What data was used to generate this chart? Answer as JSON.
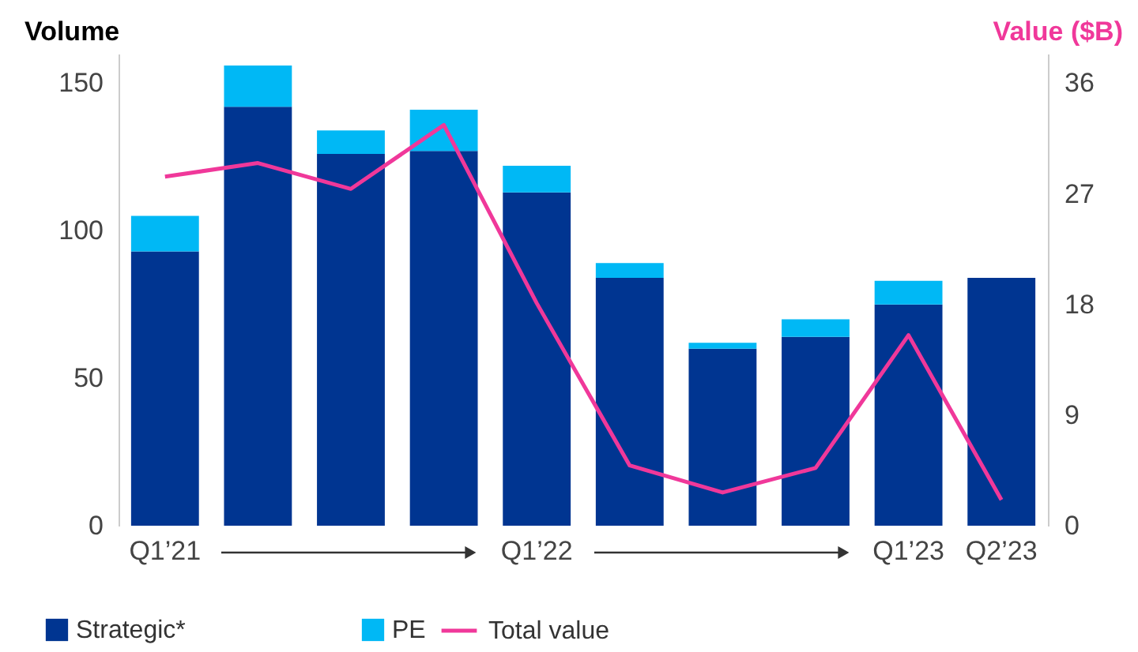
{
  "chart_data": {
    "type": "bar",
    "stacked": true,
    "ylabel": "Volume",
    "y2label": "Value ($B)",
    "categories": [
      "Q1’21",
      null,
      null,
      null,
      "Q1’22",
      null,
      null,
      null,
      "Q1’23",
      "Q2’23"
    ],
    "series": [
      {
        "name": "Strategic*",
        "color": "#003591",
        "values": [
          93,
          142,
          126,
          127,
          113,
          84,
          60,
          64,
          75,
          84
        ]
      },
      {
        "name": "PE",
        "color": "#00b8f5",
        "values": [
          12,
          14,
          8,
          14,
          9,
          5,
          2,
          6,
          8,
          0
        ]
      },
      {
        "name": "Total value",
        "type": "line",
        "axis": "y2",
        "color": "#f0389a",
        "values": [
          28.4,
          29.5,
          27.4,
          32.6,
          18.1,
          4.9,
          2.7,
          4.7,
          15.5,
          2.1
        ]
      }
    ],
    "ylim": [
      0,
      160
    ],
    "yticks": [
      0,
      50,
      100,
      150
    ],
    "y2lim": [
      0,
      38.4
    ],
    "y2ticks": [
      0,
      9,
      18,
      27,
      36
    ],
    "grid": false,
    "legend": "bottom left"
  }
}
